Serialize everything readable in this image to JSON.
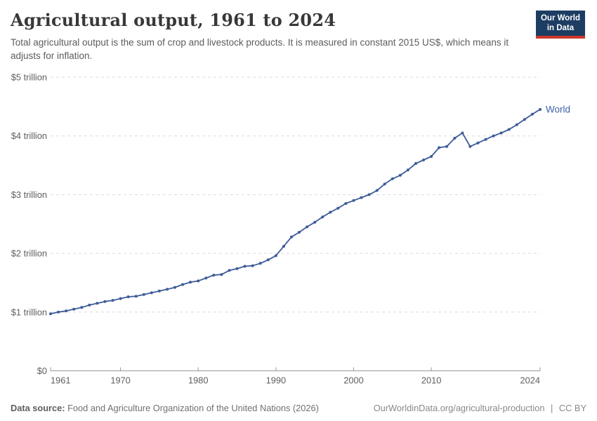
{
  "logo": {
    "line1": "Our World",
    "line2": "in Data",
    "bg_color": "#1d3d63",
    "bar_color": "#d0372d"
  },
  "chart_data": {
    "type": "line",
    "title": "Agricultural output, 1961 to 2024",
    "subtitle": "Total agricultural output is the sum of crop and livestock products. It is measured in constant 2015 US$, which means it adjusts for inflation.",
    "unit": "trillion constant 2015 US$",
    "x_start": 1961,
    "x_end": 2024,
    "xlim": [
      1961,
      2024
    ],
    "ylim": [
      0,
      5
    ],
    "x_ticks": [
      1961,
      1970,
      1980,
      1990,
      2000,
      2010,
      2024
    ],
    "y_ticks": [
      {
        "value": 0,
        "label": "$0"
      },
      {
        "value": 1,
        "label": "$1 trillion"
      },
      {
        "value": 2,
        "label": "$2 trillion"
      },
      {
        "value": 3,
        "label": "$3 trillion"
      },
      {
        "value": 4,
        "label": "$4 trillion"
      },
      {
        "value": 5,
        "label": "$5 trillion"
      }
    ],
    "grid": "horizontal-dashed",
    "legend_position": "end-of-line-label",
    "series": [
      {
        "name": "World",
        "color": "#3d5b99",
        "label_color": "#3f62a8",
        "values": [
          0.97,
          1.0,
          1.02,
          1.05,
          1.08,
          1.12,
          1.15,
          1.18,
          1.2,
          1.23,
          1.26,
          1.27,
          1.3,
          1.33,
          1.36,
          1.39,
          1.42,
          1.47,
          1.51,
          1.53,
          1.58,
          1.63,
          1.64,
          1.71,
          1.74,
          1.78,
          1.79,
          1.83,
          1.89,
          1.96,
          2.12,
          2.28,
          2.36,
          2.45,
          2.53,
          2.62,
          2.7,
          2.77,
          2.85,
          2.9,
          2.95,
          3.0,
          3.07,
          3.18,
          3.27,
          3.33,
          3.42,
          3.53,
          3.59,
          3.65,
          3.8,
          3.82,
          3.96,
          4.05,
          3.82,
          3.88,
          3.94,
          4.0,
          4.05,
          4.11,
          4.19,
          4.28,
          4.37,
          4.45
        ]
      }
    ],
    "axis_color": "#999999",
    "gridline_color": "#dcdcdc",
    "tick_label_color": "#5e5e5e"
  },
  "footer": {
    "source_label": "Data source:",
    "source_text": "Food and Agriculture Organization of the United Nations (2026)",
    "link": "OurWorldinData.org/agricultural-production",
    "separator": "|",
    "license": "CC BY"
  }
}
